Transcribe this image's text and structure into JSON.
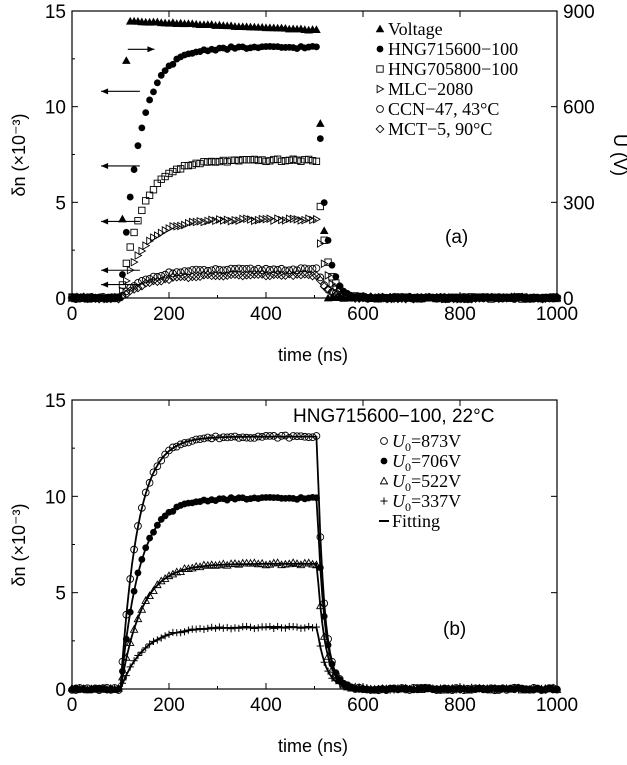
{
  "chart_data": [
    {
      "type": "scatter",
      "panel_label": "(a)",
      "xlabel": "time (ns)",
      "ylabel_left": "δn (×10⁻³)",
      "ylabel_right": "U (V)",
      "xlim": [
        0,
        1000
      ],
      "ylim_left": [
        0,
        15
      ],
      "ylim_right": [
        0,
        900
      ],
      "xticks": [
        "0",
        "200",
        "400",
        "600",
        "800",
        "1000"
      ],
      "yticks_left": [
        "0",
        "5",
        "10",
        "15"
      ],
      "yticks_right": [
        "0",
        "300",
        "600",
        "900"
      ],
      "legend_position": "top-right",
      "series": [
        {
          "name": "Voltage",
          "marker": "triangle-filled",
          "axis": "right",
          "plateau": 14.5,
          "plateau_end": 14.0
        },
        {
          "name": "HNG715600−100",
          "marker": "circle-filled",
          "axis": "left",
          "plateau": 13.1
        },
        {
          "name": "HNG705800−100",
          "marker": "square-open",
          "axis": "left",
          "plateau": 7.2
        },
        {
          "name": "MLC−2080",
          "marker": "triangle-right-open",
          "axis": "left",
          "plateau": 4.1
        },
        {
          "name": "CCN−47, 43°C",
          "marker": "circle-open",
          "axis": "left",
          "plateau": 1.5
        },
        {
          "name": "MCT−5, 90°C",
          "marker": "diamond-open",
          "axis": "left",
          "plateau": 1.2
        }
      ],
      "pulse": {
        "rise_start": 100,
        "fall_start": 505,
        "end": 1000
      }
    },
    {
      "type": "scatter",
      "panel_label": "(b)",
      "title": "HNG715600−100, 22°C",
      "xlabel": "time (ns)",
      "ylabel": "δn (×10⁻³)",
      "xlim": [
        0,
        1000
      ],
      "ylim": [
        0,
        15
      ],
      "xticks": [
        "0",
        "200",
        "400",
        "600",
        "800",
        "1000"
      ],
      "yticks": [
        "0",
        "5",
        "10",
        "15"
      ],
      "legend_position": "top-right",
      "series": [
        {
          "name": "U0=873V",
          "sub_var": "U",
          "sub_index": "0",
          "sub_value": "=873V",
          "marker": "circle-open",
          "plateau": 13.1
        },
        {
          "name": "U0=706V",
          "sub_var": "U",
          "sub_index": "0",
          "sub_value": "=706V",
          "marker": "circle-filled",
          "plateau": 9.9
        },
        {
          "name": "U0=522V",
          "sub_var": "U",
          "sub_index": "0",
          "sub_value": "=522V",
          "marker": "triangle-open",
          "plateau": 6.5
        },
        {
          "name": "U0=337V",
          "sub_var": "U",
          "sub_index": "0",
          "sub_value": "=337V",
          "marker": "plus",
          "plateau": 3.2
        },
        {
          "name": "Fitting",
          "marker": "line"
        }
      ],
      "pulse": {
        "rise_start": 100,
        "fall_start": 505,
        "end": 1000
      }
    }
  ]
}
